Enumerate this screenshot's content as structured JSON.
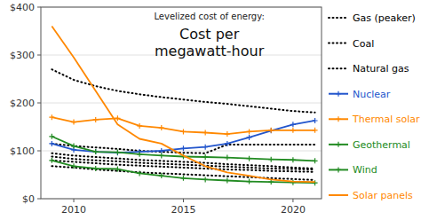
{
  "chart_data": {
    "type": "line",
    "subtitle": "Levelized cost of energy:",
    "title": "Cost per\nmegawatt-hour",
    "x": [
      2009,
      2010,
      2011,
      2012,
      2013,
      2014,
      2015,
      2016,
      2017,
      2018,
      2019,
      2020,
      2021
    ],
    "xlim": [
      2008.5,
      2021.3
    ],
    "xticks": [
      2010,
      2015,
      2020
    ],
    "ylim": [
      0,
      400
    ],
    "yticks": [
      {
        "value": 0,
        "label": "$0"
      },
      {
        "value": 100,
        "label": "$100"
      },
      {
        "value": 200,
        "label": "$200"
      },
      {
        "value": 300,
        "label": "$300"
      },
      {
        "value": 400,
        "label": "$400"
      }
    ],
    "grid": true,
    "legend": "right",
    "series": [
      {
        "name": "Gas (peaker)",
        "color": "#000000",
        "line_style": "dotted",
        "values": [
          270,
          248,
          235,
          225,
          218,
          212,
          207,
          202,
          198,
          193,
          188,
          183,
          180
        ]
      },
      {
        "name": "Gas (peaker)",
        "color": "#000000",
        "line_style": "dotted",
        "values": [
          88,
          83,
          80,
          78,
          75,
          73,
          71,
          69,
          67,
          65,
          63,
          62,
          61
        ]
      },
      {
        "name": "Coal",
        "color": "#000000",
        "line_style": "dotted",
        "values": [
          115,
          110,
          107,
          104,
          100,
          98,
          96,
          95,
          113,
          113,
          113,
          113,
          113
        ]
      },
      {
        "name": "Coal",
        "color": "#000000",
        "line_style": "dotted",
        "values": [
          95,
          90,
          87,
          84,
          81,
          79,
          77,
          75,
          72,
          70,
          68,
          65,
          63
        ]
      },
      {
        "name": "Natural gas",
        "color": "#000000",
        "line_style": "dotted",
        "values": [
          80,
          77,
          74,
          71,
          69,
          67,
          65,
          63,
          61,
          60,
          58,
          57,
          56
        ]
      },
      {
        "name": "Natural gas",
        "color": "#000000",
        "line_style": "dotted",
        "values": [
          68,
          65,
          61,
          58,
          55,
          53,
          51,
          49,
          47,
          45,
          43,
          41,
          39
        ]
      },
      {
        "name": "Nuclear",
        "color": "#2255cc",
        "line_style": "solid",
        "marker": "plus",
        "values": [
          115,
          102,
          98,
          96,
          98,
          100,
          105,
          108,
          115,
          128,
          142,
          155,
          163
        ]
      },
      {
        "name": "Thermal solar",
        "color": "#ff8800",
        "line_style": "solid",
        "marker": "plus",
        "values": [
          170,
          160,
          165,
          168,
          152,
          148,
          140,
          138,
          135,
          140,
          143,
          143,
          143
        ]
      },
      {
        "name": "Geothermal",
        "color": "#228b22",
        "line_style": "solid",
        "marker": "plus",
        "values": [
          130,
          110,
          98,
          97,
          93,
          90,
          88,
          87,
          86,
          84,
          82,
          81,
          79
        ]
      },
      {
        "name": "Wind",
        "color": "#228b22",
        "line_style": "solid",
        "marker": "plus",
        "values": [
          80,
          68,
          63,
          62,
          53,
          48,
          43,
          40,
          38,
          36,
          35,
          34,
          33
        ]
      },
      {
        "name": "Solar panels",
        "color": "#ff8800",
        "line_style": "solid",
        "values": [
          360,
          295,
          225,
          155,
          125,
          115,
          90,
          68,
          55,
          48,
          40,
          36,
          35
        ]
      }
    ]
  }
}
